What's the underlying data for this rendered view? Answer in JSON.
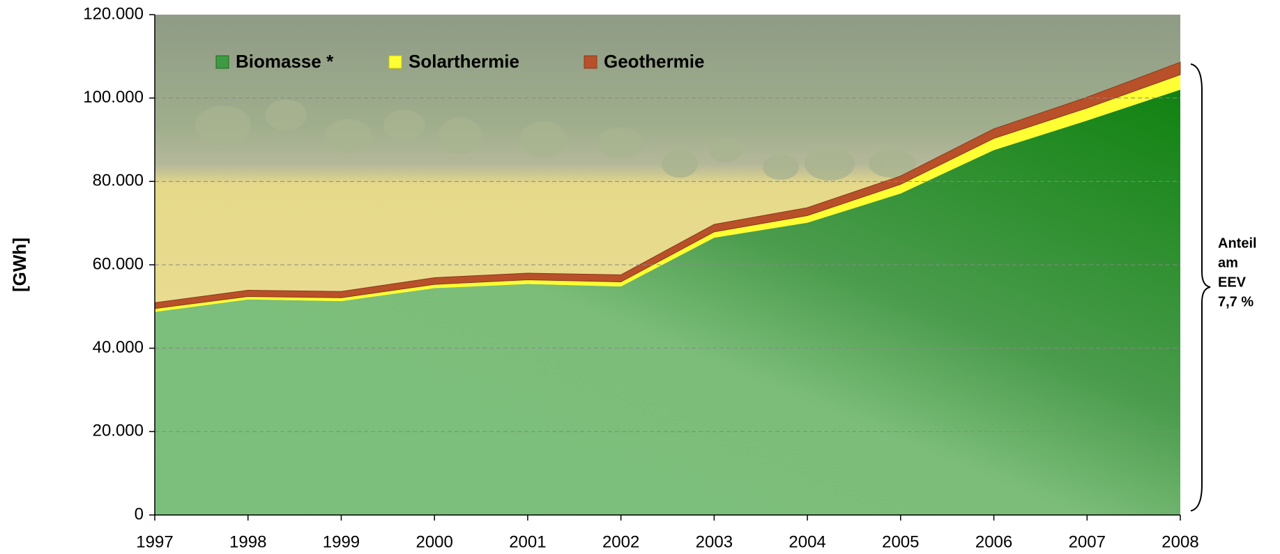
{
  "chart_data": {
    "type": "stacked-area",
    "y_label": "[GWh]",
    "x": [
      1997,
      1998,
      1999,
      2000,
      2001,
      2002,
      2003,
      2004,
      2005,
      2006,
      2007,
      2008
    ],
    "xlim": [
      1997,
      2008
    ],
    "xticks": [
      1997,
      1998,
      1999,
      2000,
      2001,
      2002,
      2003,
      2004,
      2005,
      2006,
      2007,
      2008
    ],
    "ylim": [
      0,
      120000
    ],
    "yticks": [
      0,
      {
        "value": 20000,
        "label": "20.000"
      },
      {
        "value": 40000,
        "label": "40.000"
      },
      {
        "value": 60000,
        "label": "60.000"
      },
      {
        "value": 80000,
        "label": "80.000"
      },
      {
        "value": 100000,
        "label": "100.000"
      },
      {
        "value": 120000,
        "label": "120.000"
      }
    ],
    "grid": true,
    "series": [
      {
        "name": "Biomasse *",
        "color": "#3f9a44",
        "values": [
          48700,
          51700,
          51300,
          54400,
          55400,
          54800,
          66500,
          70100,
          77100,
          87500,
          94600,
          102000
        ]
      },
      {
        "name": "Solarthermie",
        "color": "#ffff33",
        "values": [
          800,
          700,
          800,
          900,
          1000,
          1100,
          1400,
          1700,
          2200,
          2800,
          3000,
          3600
        ]
      },
      {
        "name": "Geothermie",
        "color": "#b8502a",
        "values": [
          1400,
          1500,
          1500,
          1600,
          1600,
          1700,
          1800,
          1900,
          2000,
          2300,
          2600,
          3000
        ]
      }
    ],
    "annotation": [
      "Anteil",
      "am",
      "EEV",
      "7,7 %"
    ]
  }
}
